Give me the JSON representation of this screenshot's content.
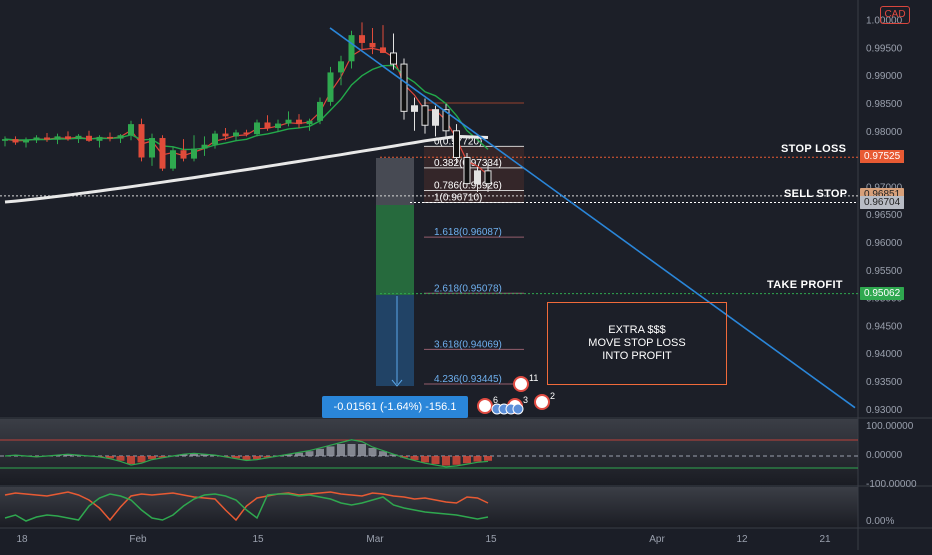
{
  "currency_badge": "CAD",
  "levels": {
    "stop_loss": "STOP LOSS",
    "sell_stop": "SELL STOP",
    "take_profit": "TAKE PROFIT"
  },
  "price_tags": [
    {
      "value": "0.97534",
      "color": "#ffffff",
      "text_color": "#222222"
    },
    {
      "value": "0.97525",
      "color": "#e85a33",
      "text_color": "#ffffff"
    },
    {
      "value": "0.96851",
      "color": "#d7a07a",
      "text_color": "#222222"
    },
    {
      "value": "0.96710",
      "color": "#ffffff",
      "text_color": "#222222"
    },
    {
      "value": "0.96704",
      "color": "#b8bcc5",
      "text_color": "#222222"
    },
    {
      "value": "0.95072",
      "color": "#2fa84f",
      "text_color": "#ffffff"
    },
    {
      "value": "0.95062",
      "color": "#2fa84f",
      "text_color": "#ffffff"
    }
  ],
  "y_axis_ticks": [
    "1.00000",
    "0.99500",
    "0.99000",
    "0.98500",
    "0.98000",
    "0.97500",
    "0.97000",
    "0.96500",
    "0.96000",
    "0.95500",
    "0.95000",
    "0.94500",
    "0.94000",
    "0.93500",
    "0.93000"
  ],
  "osc_ticks": [
    "100.00000",
    "0.00000",
    "-100.00000"
  ],
  "pct_tick": "0.00%",
  "x_axis_ticks": [
    "18",
    "Feb",
    "15",
    "Mar",
    "15",
    "Apr",
    "12",
    "21"
  ],
  "fib_labels": [
    {
      "label": "0(0.97720)",
      "price": 0.9772
    },
    {
      "label": "0.382(0.97334)",
      "price": 0.97334
    },
    {
      "label": "0.786(0.96926)",
      "price": 0.96926
    },
    {
      "label": "1(0.96710)",
      "price": 0.9671
    },
    {
      "label": "1.618(0.96087)",
      "price": 0.96087
    },
    {
      "label": "2.618(0.95078)",
      "price": 0.95078
    },
    {
      "label": "3.618(0.94069)",
      "price": 0.94069
    },
    {
      "label": "4.236(0.93445)",
      "price": 0.93445
    }
  ],
  "measure_label": "-0.01561 (-1.64%) -156.1",
  "note_lines": [
    "EXTRA $$$",
    "MOVE STOP LOSS",
    "INTO PROFIT"
  ],
  "event_counts": [
    "11",
    "6",
    "3",
    "2"
  ],
  "colors": {
    "up": "#2fa84f",
    "down": "#e04b3a",
    "ema_white": "#e8e8e8",
    "ema_green": "#22a94a",
    "ema_red": "#e0443a",
    "trend": "#2a86d9",
    "fib": "#e85a33"
  },
  "chart_data": {
    "type": "candlestick",
    "ylim": [
      0.9295,
      1.001
    ],
    "candles": [
      [
        0.9782,
        0.979,
        0.9772,
        0.9785
      ],
      [
        0.9785,
        0.979,
        0.9775,
        0.9779
      ],
      [
        0.9779,
        0.9788,
        0.977,
        0.9783
      ],
      [
        0.9783,
        0.9792,
        0.9778,
        0.9788
      ],
      [
        0.9788,
        0.9796,
        0.978,
        0.9784
      ],
      [
        0.9784,
        0.9795,
        0.9776,
        0.979
      ],
      [
        0.979,
        0.9799,
        0.9782,
        0.9785
      ],
      [
        0.9785,
        0.9794,
        0.9778,
        0.9791
      ],
      [
        0.9791,
        0.98,
        0.978,
        0.9782
      ],
      [
        0.9782,
        0.9792,
        0.977,
        0.9789
      ],
      [
        0.9789,
        0.9797,
        0.9781,
        0.9786
      ],
      [
        0.9786,
        0.9794,
        0.9778,
        0.9792
      ],
      [
        0.9792,
        0.9818,
        0.9783,
        0.9812
      ],
      [
        0.9812,
        0.9822,
        0.9745,
        0.9752
      ],
      [
        0.9752,
        0.9795,
        0.9737,
        0.9787
      ],
      [
        0.9787,
        0.9792,
        0.9728,
        0.9732
      ],
      [
        0.9732,
        0.9772,
        0.9728,
        0.9765
      ],
      [
        0.9765,
        0.9785,
        0.9745,
        0.975
      ],
      [
        0.975,
        0.9792,
        0.9745,
        0.9768
      ],
      [
        0.9768,
        0.979,
        0.9755,
        0.9775
      ],
      [
        0.9775,
        0.98,
        0.9768,
        0.9795
      ],
      [
        0.9795,
        0.9805,
        0.9783,
        0.979
      ],
      [
        0.979,
        0.9802,
        0.9782,
        0.9797
      ],
      [
        0.9797,
        0.9802,
        0.979,
        0.9794
      ],
      [
        0.9794,
        0.982,
        0.979,
        0.9815
      ],
      [
        0.9815,
        0.9828,
        0.98,
        0.9805
      ],
      [
        0.9805,
        0.982,
        0.9798,
        0.9813
      ],
      [
        0.9813,
        0.9835,
        0.9808,
        0.982
      ],
      [
        0.982,
        0.983,
        0.9805,
        0.9812
      ],
      [
        0.9812,
        0.9822,
        0.98,
        0.9818
      ],
      [
        0.9818,
        0.986,
        0.9812,
        0.9852
      ],
      [
        0.9852,
        0.9915,
        0.9845,
        0.9905
      ],
      [
        0.9905,
        0.9935,
        0.9882,
        0.9925
      ],
      [
        0.9925,
        0.998,
        0.9912,
        0.9972
      ],
      [
        0.9972,
        0.9995,
        0.9945,
        0.9958
      ],
      [
        0.9958,
        0.9985,
        0.9938,
        0.995
      ],
      [
        0.995,
        0.999,
        0.994,
        0.994
      ],
      [
        0.994,
        0.9975,
        0.991,
        0.992
      ],
      [
        0.992,
        0.993,
        0.982,
        0.9835
      ],
      [
        0.9835,
        0.986,
        0.98,
        0.9845
      ],
      [
        0.9845,
        0.9858,
        0.9795,
        0.981
      ],
      [
        0.981,
        0.9845,
        0.979,
        0.9838
      ],
      [
        0.9838,
        0.9848,
        0.9785,
        0.98
      ],
      [
        0.98,
        0.9812,
        0.974,
        0.9752
      ],
      [
        0.9752,
        0.976,
        0.97,
        0.9705
      ],
      [
        0.9705,
        0.9735,
        0.969,
        0.9728
      ],
      [
        0.9728,
        0.9745,
        0.969,
        0.9705
      ]
    ],
    "x_start": 5,
    "x_step": 10.5
  }
}
